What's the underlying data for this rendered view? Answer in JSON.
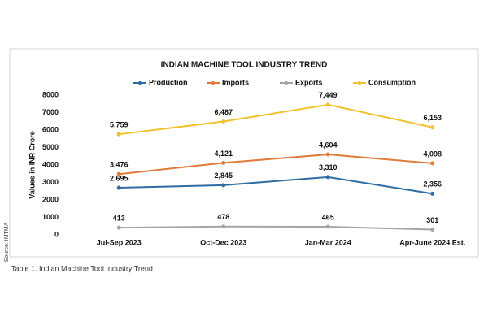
{
  "chart_data": {
    "type": "line",
    "title": "INDIAN MACHINE TOOL INDUSTRY TREND",
    "y_label": "Values in INR Crore",
    "source": "Source: IMTMA",
    "caption": "Table 1. Indian Machine Tool Industry Trend",
    "categories": [
      "Jul-Sep 2023",
      "Oct-Dec 2023",
      "Jan-Mar 2024",
      "Apr-June 2024 Est."
    ],
    "series": [
      {
        "name": "Production",
        "color": "#2e6da4",
        "values": [
          2695,
          2845,
          3310,
          2356
        ],
        "value_labels": [
          "2,695",
          "2,845",
          "3,310",
          "2,356"
        ]
      },
      {
        "name": "Imports",
        "color": "#e07b39",
        "values": [
          3476,
          4121,
          4604,
          4098
        ],
        "value_labels": [
          "3,476",
          "4,121",
          "4,604",
          "4,098"
        ]
      },
      {
        "name": "Exports",
        "color": "#a5a5a5",
        "values": [
          413,
          478,
          465,
          301
        ],
        "value_labels": [
          "413",
          "478",
          "465",
          "301"
        ]
      },
      {
        "name": "Consumption",
        "color": "#f2c12e",
        "values": [
          5759,
          6487,
          7449,
          6153
        ],
        "value_labels": [
          "5,759",
          "6,487",
          "7,449",
          "6,153"
        ]
      }
    ],
    "ylim": [
      0,
      8000
    ],
    "yticks": [
      0,
      1000,
      2000,
      3000,
      4000,
      5000,
      6000,
      7000,
      8000
    ],
    "grid": false
  }
}
